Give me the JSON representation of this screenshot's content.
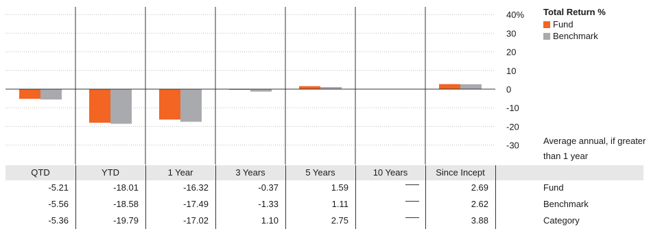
{
  "colors": {
    "fund": "#f26522",
    "benchmark": "#a8aaad",
    "grid": "#bbbbbb",
    "axis": "#333333",
    "header_bg": "#e7e7e7"
  },
  "chart_data": {
    "type": "bar",
    "title": "Total Return %",
    "categories": [
      "QTD",
      "YTD",
      "1 Year",
      "3 Years",
      "5 Years",
      "10 Years",
      "Since Incept"
    ],
    "series": [
      {
        "name": "Fund",
        "values": [
          -5.21,
          -18.01,
          -16.32,
          -0.37,
          1.59,
          null,
          2.69
        ]
      },
      {
        "name": "Benchmark",
        "values": [
          -5.56,
          -18.58,
          -17.49,
          -1.33,
          1.11,
          null,
          2.62
        ]
      }
    ],
    "ylim": [
      -35,
      42
    ],
    "yticks": [
      40,
      30,
      20,
      10,
      0,
      -10,
      -20,
      -30
    ],
    "ytick_labels": [
      "40%",
      "30",
      "20",
      "10",
      "0",
      "-10",
      "-20",
      "-30"
    ],
    "grid": true,
    "legend_position": "right"
  },
  "legend": {
    "title": "Total Return %",
    "items": [
      "Fund",
      "Benchmark"
    ]
  },
  "note": "Average annual, if greater than 1 year",
  "table": {
    "headers": [
      "QTD",
      "YTD",
      "1 Year",
      "3 Years",
      "5 Years",
      "10 Years",
      "Since Incept"
    ],
    "rows": [
      {
        "label": "Fund",
        "values": [
          "-5.21",
          "-18.01",
          "-16.32",
          "-0.37",
          "1.59",
          "—",
          "2.69"
        ]
      },
      {
        "label": "Benchmark",
        "values": [
          "-5.56",
          "-18.58",
          "-17.49",
          "-1.33",
          "1.11",
          "—",
          "2.62"
        ]
      },
      {
        "label": "Category",
        "values": [
          "-5.36",
          "-19.79",
          "-17.02",
          "1.10",
          "2.75",
          "—",
          "3.88"
        ]
      }
    ]
  }
}
